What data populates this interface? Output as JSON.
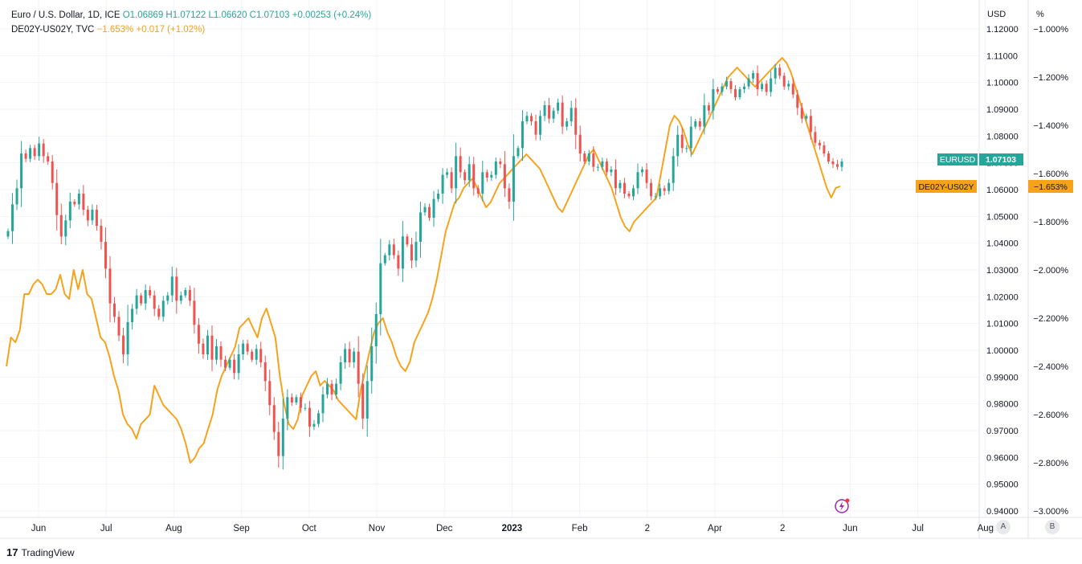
{
  "legend": {
    "main_symbol": "Euro / U.S. Dollar, 1D, ICE",
    "o": "O1.06869",
    "h": "H1.07122",
    "l": "L1.06620",
    "c": "C1.07103",
    "chg": "+0.00253 (+0.24%)",
    "second_symbol": "DE02Y-US02Y, TVC",
    "second_vals": "−1.653% +0.017 (+1.02%)"
  },
  "axis_units": {
    "left_scale": "USD",
    "right_scale": "%"
  },
  "buttons": {
    "a": "A",
    "b": "B"
  },
  "branding": {
    "name": "TradingView"
  },
  "labels": {
    "eur_tag": "EURUSD",
    "eur_value": "1.07103",
    "spread_tag": "DE02Y-US02Y",
    "spread_value": "−1.653%"
  },
  "colors": {
    "up": "#26a69a",
    "down": "#ef5350",
    "spread": "#f7a21b",
    "grid": "#f0f3fa"
  },
  "chart_data": {
    "type": "line",
    "x_ticks": [
      "Jun",
      "Jul",
      "Aug",
      "Sep",
      "Oct",
      "Nov",
      "Dec",
      "2023",
      "Feb",
      "2",
      "Apr",
      "2",
      "Jun",
      "Jul",
      "Aug"
    ],
    "usd_ticks": [
      "1.12000",
      "1.11000",
      "1.10000",
      "1.09000",
      "1.08000",
      "1.07000",
      "1.06000",
      "1.05000",
      "1.04000",
      "1.03000",
      "1.02000",
      "1.01000",
      "1.00000",
      "0.99000",
      "0.98000",
      "0.97000",
      "0.96000",
      "0.95000",
      "0.94000"
    ],
    "pct_ticks": [
      "−1.000%",
      "−1.200%",
      "−1.400%",
      "−1.600%",
      "−1.800%",
      "−2.000%",
      "−2.200%",
      "−2.400%",
      "−2.600%",
      "−2.800%",
      "−3.000%"
    ],
    "usd_range": [
      0.94,
      1.12
    ],
    "pct_range": [
      -3.0,
      -1.0
    ],
    "series": [
      {
        "name": "EURUSD",
        "unit": "USD",
        "type": "candlestick",
        "close": [
          1.0445,
          1.0545,
          1.0605,
          1.0735,
          1.0715,
          1.0755,
          1.0725,
          1.0772,
          1.0725,
          1.0705,
          1.0625,
          1.0505,
          1.0425,
          1.0485,
          1.0555,
          1.0545,
          1.0585,
          1.0525,
          1.0485,
          1.0525,
          1.0465,
          1.0405,
          1.0305,
          1.0175,
          1.0125,
          1.0055,
          0.9985,
          1.0105,
          1.0155,
          1.0205,
          1.0175,
          1.0225,
          1.0205,
          1.0155,
          1.0125,
          1.0185,
          1.0205,
          1.0275,
          1.0185,
          1.0205,
          1.0225,
          1.0185,
          1.0095,
          1.0025,
          0.9985,
          1.0055,
          0.9965,
          1.0015,
          0.9965,
          0.9935,
          0.9965,
          0.9915,
          0.9985,
          1.0025,
          0.9995,
          0.9965,
          1.0005,
          0.9955,
          0.9885,
          0.9795,
          0.9695,
          0.9605,
          0.9745,
          0.9825,
          0.9805,
          0.9825,
          0.9785,
          0.9785,
          0.9715,
          0.9725,
          0.9765,
          0.9835,
          0.9875,
          0.9835,
          0.9875,
          0.9955,
          1.0005,
          0.9955,
          0.9995,
          0.9875,
          0.9745,
          0.9885,
          1.0015,
          1.0135,
          1.0325,
          1.0355,
          1.0395,
          1.0355,
          1.0305,
          1.0425,
          1.0395,
          1.0335,
          1.0405,
          1.0515,
          1.0535,
          1.0495,
          1.0565,
          1.0585,
          1.0655,
          1.0665,
          1.0605,
          1.0725,
          1.0665,
          1.0635,
          1.0695,
          1.0605,
          1.0585,
          1.0665,
          1.0645,
          1.0655,
          1.0705,
          1.0695,
          1.0605,
          1.0555,
          1.0725,
          1.0755,
          1.0855,
          1.0875,
          1.0855,
          1.0805,
          1.0875,
          1.0915,
          1.0865,
          1.0895,
          1.0925,
          1.0835,
          1.0855,
          1.0905,
          1.0805,
          1.0735,
          1.0705,
          1.0735,
          1.0685,
          1.0685,
          1.0705,
          1.0665,
          1.0675,
          1.0605,
          1.0625,
          1.0585,
          1.0575,
          1.0605,
          1.0665,
          1.0675,
          1.0625,
          1.0575,
          1.0575,
          1.0605,
          1.0595,
          1.0625,
          1.0725,
          1.0805,
          1.0755,
          1.0755,
          1.0835,
          1.0855,
          1.0835,
          1.0915,
          1.0895,
          1.0975,
          1.0965,
          1.0985,
          1.1005,
          1.0975,
          1.0945,
          1.0975,
          1.0985,
          1.1015,
          1.1035,
          1.0975,
          1.0995,
          1.0965,
          1.1015,
          1.1055,
          1.1025,
          1.0985,
          1.0995,
          1.0955,
          1.0905,
          1.0865,
          1.0875,
          1.0815,
          1.0775,
          1.0765,
          1.0735,
          1.0705,
          1.0695,
          1.0685,
          1.0705
        ],
        "last": 1.07103
      },
      {
        "name": "DE02Y-US02Y",
        "unit": "%",
        "type": "line",
        "values": [
          -2.4,
          -2.28,
          -2.3,
          -2.25,
          -2.1,
          -2.1,
          -2.06,
          -2.04,
          -2.06,
          -2.1,
          -2.1,
          -2.08,
          -2.02,
          -2.1,
          -2.12,
          -2.0,
          -2.08,
          -2.0,
          -2.1,
          -2.12,
          -2.2,
          -2.28,
          -2.3,
          -2.36,
          -2.44,
          -2.5,
          -2.6,
          -2.64,
          -2.66,
          -2.7,
          -2.64,
          -2.62,
          -2.6,
          -2.48,
          -2.52,
          -2.56,
          -2.58,
          -2.6,
          -2.62,
          -2.66,
          -2.72,
          -2.8,
          -2.78,
          -2.74,
          -2.72,
          -2.66,
          -2.6,
          -2.5,
          -2.44,
          -2.4,
          -2.36,
          -2.32,
          -2.24,
          -2.22,
          -2.2,
          -2.24,
          -2.28,
          -2.2,
          -2.16,
          -2.22,
          -2.28,
          -2.44,
          -2.56,
          -2.64,
          -2.66,
          -2.62,
          -2.52,
          -2.48,
          -2.44,
          -2.42,
          -2.48,
          -2.46,
          -2.48,
          -2.5,
          -2.54,
          -2.56,
          -2.58,
          -2.6,
          -2.62,
          -2.5,
          -2.42,
          -2.34,
          -2.26,
          -2.22,
          -2.2,
          -2.26,
          -2.3,
          -2.36,
          -2.4,
          -2.42,
          -2.38,
          -2.3,
          -2.26,
          -2.22,
          -2.18,
          -2.12,
          -2.04,
          -1.94,
          -1.84,
          -1.78,
          -1.72,
          -1.7,
          -1.66,
          -1.64,
          -1.62,
          -1.66,
          -1.7,
          -1.74,
          -1.72,
          -1.68,
          -1.64,
          -1.62,
          -1.6,
          -1.58,
          -1.56,
          -1.54,
          -1.52,
          -1.54,
          -1.56,
          -1.58,
          -1.62,
          -1.66,
          -1.7,
          -1.74,
          -1.76,
          -1.72,
          -1.68,
          -1.64,
          -1.6,
          -1.56,
          -1.52,
          -1.5,
          -1.54,
          -1.58,
          -1.62,
          -1.66,
          -1.72,
          -1.78,
          -1.82,
          -1.84,
          -1.8,
          -1.78,
          -1.76,
          -1.74,
          -1.72,
          -1.7,
          -1.6,
          -1.5,
          -1.4,
          -1.36,
          -1.38,
          -1.42,
          -1.48,
          -1.52,
          -1.48,
          -1.44,
          -1.4,
          -1.36,
          -1.32,
          -1.28,
          -1.24,
          -1.2,
          -1.18,
          -1.16,
          -1.18,
          -1.2,
          -1.22,
          -1.24,
          -1.22,
          -1.2,
          -1.18,
          -1.16,
          -1.14,
          -1.12,
          -1.14,
          -1.18,
          -1.24,
          -1.3,
          -1.36,
          -1.42,
          -1.48,
          -1.54,
          -1.6,
          -1.66,
          -1.7,
          -1.66,
          -1.653
        ]
      }
    ]
  }
}
